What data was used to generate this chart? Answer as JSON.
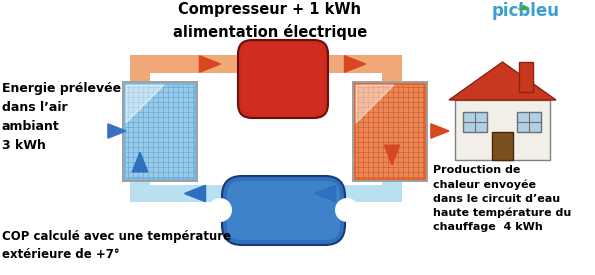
{
  "title_top": "Compresseur + 1 kWh\nalimentation électrique",
  "label_left": "Energie prélevée\ndans l’air\nambiant\n3 kWh",
  "label_right": "Production de\nchaleur envoyée\ndans le circuit d’eau\nhaute température du\nchauffage  4 kWh",
  "label_bottom": "COP calculé avec une température\nextérieure de +7°",
  "logo_text": "picbleu",
  "bg_color": "#ffffff",
  "orange_pipe": "#F0A878",
  "red_box": "#CC2A20",
  "blue_pipe": "#B8E0F0",
  "blue_box": "#2E6FBF",
  "blue_box_inner": "#4A8FD0",
  "arrow_orange": "#D84820",
  "arrow_blue": "#2E6FBF",
  "text_color": "#000000",
  "panel_border": "#707070"
}
